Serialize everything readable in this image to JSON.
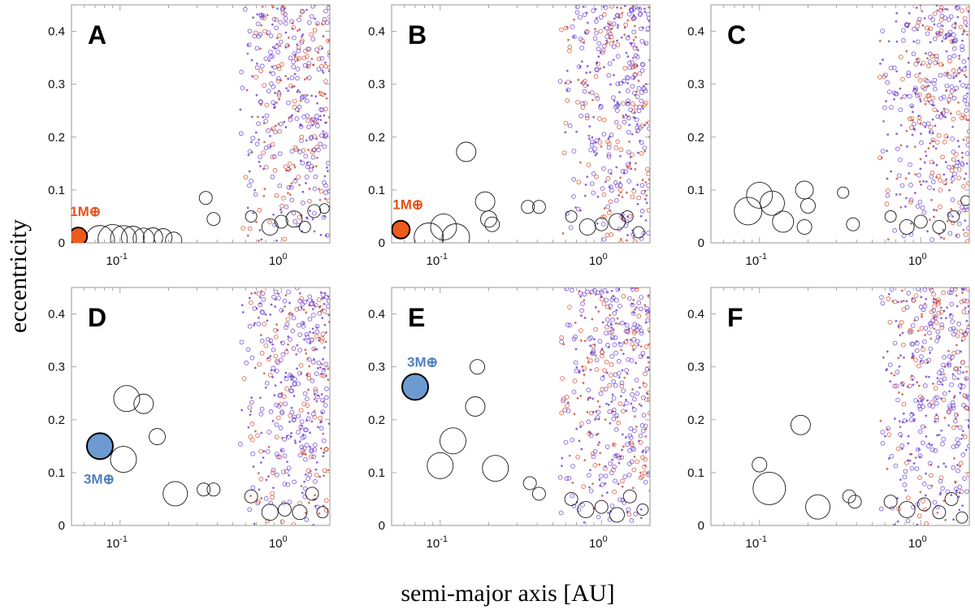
{
  "figure": {
    "xlabel": "semi-major axis [AU]",
    "ylabel": "eccentricity"
  },
  "colors": {
    "frame": "#a8a8a8",
    "planet_outline": "#1a1a1a",
    "planetesimal_purple": "#6a3fd0",
    "planetesimal_red": "#d24a2a",
    "earth_fill": "#ee5a1c",
    "super_earth_fill": "#6d9bd1",
    "annotation_orange": "#e4521d",
    "annotation_blue": "#4f7fbf"
  },
  "chart_data": [
    {
      "panel": "A",
      "type": "scatter",
      "xscale": "log",
      "xlim": [
        0.05,
        2.0
      ],
      "ylim": [
        0,
        0.45
      ],
      "yticks": [
        "0",
        "0.1",
        "0.2",
        "0.3",
        "0.4"
      ],
      "xticks": [
        "10^-1",
        "10^0"
      ],
      "highlight": {
        "label": "1M⊕",
        "x": 0.055,
        "e": 0.012,
        "mass_earth": 1,
        "color": "orange"
      },
      "planets": [
        {
          "x": 0.075,
          "e": 0.005,
          "r": 18
        },
        {
          "x": 0.09,
          "e": 0.007,
          "r": 18
        },
        {
          "x": 0.105,
          "e": 0.008,
          "r": 16
        },
        {
          "x": 0.12,
          "e": 0.01,
          "r": 14
        },
        {
          "x": 0.14,
          "e": 0.008,
          "r": 13
        },
        {
          "x": 0.16,
          "e": 0.01,
          "r": 12
        },
        {
          "x": 0.185,
          "e": 0.01,
          "r": 11
        },
        {
          "x": 0.215,
          "e": 0.005,
          "r": 10
        },
        {
          "x": 0.34,
          "e": 0.085,
          "r": 8
        },
        {
          "x": 0.38,
          "e": 0.045,
          "r": 8
        },
        {
          "x": 0.65,
          "e": 0.05,
          "r": 7
        },
        {
          "x": 0.85,
          "e": 0.03,
          "r": 10
        },
        {
          "x": 1.0,
          "e": 0.04,
          "r": 8
        },
        {
          "x": 1.2,
          "e": 0.045,
          "r": 10
        },
        {
          "x": 1.4,
          "e": 0.03,
          "r": 7
        },
        {
          "x": 1.6,
          "e": 0.06,
          "r": 8
        },
        {
          "x": 1.85,
          "e": 0.065,
          "r": 6
        }
      ]
    },
    {
      "panel": "B",
      "type": "scatter",
      "xscale": "log",
      "xlim": [
        0.05,
        2.0
      ],
      "ylim": [
        0,
        0.45
      ],
      "yticks": [
        "0",
        "0.1",
        "0.2",
        "0.3",
        "0.4"
      ],
      "xticks": [
        "10^-1",
        "10^0"
      ],
      "highlight": {
        "label": "1M⊕",
        "x": 0.057,
        "e": 0.025,
        "mass_earth": 1,
        "color": "orange"
      },
      "planets": [
        {
          "x": 0.085,
          "e": 0.01,
          "r": 18
        },
        {
          "x": 0.105,
          "e": 0.03,
          "r": 16
        },
        {
          "x": 0.125,
          "e": 0.01,
          "r": 17
        },
        {
          "x": 0.145,
          "e": 0.172,
          "r": 12
        },
        {
          "x": 0.19,
          "e": 0.078,
          "r": 12
        },
        {
          "x": 0.2,
          "e": 0.045,
          "r": 10
        },
        {
          "x": 0.21,
          "e": 0.035,
          "r": 9
        },
        {
          "x": 0.35,
          "e": 0.068,
          "r": 8
        },
        {
          "x": 0.41,
          "e": 0.068,
          "r": 8
        },
        {
          "x": 0.65,
          "e": 0.05,
          "r": 7
        },
        {
          "x": 0.82,
          "e": 0.03,
          "r": 10
        },
        {
          "x": 1.0,
          "e": 0.035,
          "r": 8
        },
        {
          "x": 1.25,
          "e": 0.04,
          "r": 10
        },
        {
          "x": 1.45,
          "e": 0.05,
          "r": 7
        },
        {
          "x": 1.7,
          "e": 0.02,
          "r": 7
        }
      ]
    },
    {
      "panel": "C",
      "type": "scatter",
      "xscale": "log",
      "xlim": [
        0.05,
        2.0
      ],
      "ylim": [
        0,
        0.45
      ],
      "yticks": [
        "0",
        "0.1",
        "0.2",
        "0.3",
        "0.4"
      ],
      "xticks": [
        "10^-1",
        "10^0"
      ],
      "planets": [
        {
          "x": 0.085,
          "e": 0.06,
          "r": 17
        },
        {
          "x": 0.1,
          "e": 0.09,
          "r": 16
        },
        {
          "x": 0.12,
          "e": 0.075,
          "r": 15
        },
        {
          "x": 0.14,
          "e": 0.04,
          "r": 13
        },
        {
          "x": 0.19,
          "e": 0.1,
          "r": 11
        },
        {
          "x": 0.2,
          "e": 0.07,
          "r": 9
        },
        {
          "x": 0.19,
          "e": 0.03,
          "r": 9
        },
        {
          "x": 0.33,
          "e": 0.095,
          "r": 7
        },
        {
          "x": 0.38,
          "e": 0.035,
          "r": 8
        },
        {
          "x": 0.65,
          "e": 0.05,
          "r": 7
        },
        {
          "x": 0.82,
          "e": 0.03,
          "r": 9
        },
        {
          "x": 1.0,
          "e": 0.04,
          "r": 8
        },
        {
          "x": 1.3,
          "e": 0.03,
          "r": 8
        },
        {
          "x": 1.6,
          "e": 0.05,
          "r": 7
        },
        {
          "x": 1.9,
          "e": 0.08,
          "r": 6
        }
      ]
    },
    {
      "panel": "D",
      "type": "scatter",
      "xscale": "log",
      "xlim": [
        0.05,
        2.0
      ],
      "ylim": [
        0,
        0.45
      ],
      "yticks": [
        "0",
        "0.1",
        "0.2",
        "0.3",
        "0.4"
      ],
      "xticks": [
        "10^-1",
        "10^0"
      ],
      "highlight": {
        "label": "3M⊕",
        "x": 0.075,
        "e": 0.15,
        "mass_earth": 3,
        "color": "blue"
      },
      "planets": [
        {
          "x": 0.11,
          "e": 0.24,
          "r": 16
        },
        {
          "x": 0.14,
          "e": 0.23,
          "r": 12
        },
        {
          "x": 0.105,
          "e": 0.125,
          "r": 16
        },
        {
          "x": 0.17,
          "e": 0.168,
          "r": 10
        },
        {
          "x": 0.22,
          "e": 0.06,
          "r": 15
        },
        {
          "x": 0.33,
          "e": 0.068,
          "r": 8
        },
        {
          "x": 0.38,
          "e": 0.068,
          "r": 8
        },
        {
          "x": 0.65,
          "e": 0.055,
          "r": 8
        },
        {
          "x": 0.85,
          "e": 0.025,
          "r": 10
        },
        {
          "x": 1.05,
          "e": 0.03,
          "r": 8
        },
        {
          "x": 1.3,
          "e": 0.025,
          "r": 9
        },
        {
          "x": 1.55,
          "e": 0.06,
          "r": 8
        },
        {
          "x": 1.8,
          "e": 0.025,
          "r": 7
        }
      ]
    },
    {
      "panel": "E",
      "type": "scatter",
      "xscale": "log",
      "xlim": [
        0.05,
        2.0
      ],
      "ylim": [
        0,
        0.45
      ],
      "yticks": [
        "0",
        "0.1",
        "0.2",
        "0.3",
        "0.4"
      ],
      "xticks": [
        "10^-1",
        "10^0"
      ],
      "highlight": {
        "label": "3M⊕",
        "x": 0.07,
        "e": 0.262,
        "mass_earth": 3,
        "color": "blue"
      },
      "planets": [
        {
          "x": 0.17,
          "e": 0.3,
          "r": 9
        },
        {
          "x": 0.165,
          "e": 0.225,
          "r": 12
        },
        {
          "x": 0.12,
          "e": 0.16,
          "r": 16
        },
        {
          "x": 0.1,
          "e": 0.113,
          "r": 16
        },
        {
          "x": 0.22,
          "e": 0.108,
          "r": 16
        },
        {
          "x": 0.36,
          "e": 0.08,
          "r": 8
        },
        {
          "x": 0.41,
          "e": 0.06,
          "r": 8
        },
        {
          "x": 0.65,
          "e": 0.05,
          "r": 8
        },
        {
          "x": 0.8,
          "e": 0.03,
          "r": 10
        },
        {
          "x": 1.0,
          "e": 0.035,
          "r": 8
        },
        {
          "x": 1.25,
          "e": 0.02,
          "r": 9
        },
        {
          "x": 1.5,
          "e": 0.055,
          "r": 8
        },
        {
          "x": 1.8,
          "e": 0.03,
          "r": 7
        }
      ]
    },
    {
      "panel": "F",
      "type": "scatter",
      "xscale": "log",
      "xlim": [
        0.05,
        2.0
      ],
      "ylim": [
        0,
        0.45
      ],
      "yticks": [
        "0",
        "0.1",
        "0.2",
        "0.3",
        "0.4"
      ],
      "xticks": [
        "10^-1",
        "10^0"
      ],
      "planets": [
        {
          "x": 0.1,
          "e": 0.115,
          "r": 9
        },
        {
          "x": 0.115,
          "e": 0.07,
          "r": 20
        },
        {
          "x": 0.18,
          "e": 0.19,
          "r": 12
        },
        {
          "x": 0.23,
          "e": 0.035,
          "r": 15
        },
        {
          "x": 0.36,
          "e": 0.055,
          "r": 8
        },
        {
          "x": 0.39,
          "e": 0.045,
          "r": 8
        },
        {
          "x": 0.65,
          "e": 0.045,
          "r": 8
        },
        {
          "x": 0.82,
          "e": 0.03,
          "r": 10
        },
        {
          "x": 1.05,
          "e": 0.04,
          "r": 8
        },
        {
          "x": 1.3,
          "e": 0.025,
          "r": 8
        },
        {
          "x": 1.55,
          "e": 0.05,
          "r": 8
        },
        {
          "x": 1.8,
          "e": 0.015,
          "r": 7
        }
      ]
    }
  ]
}
